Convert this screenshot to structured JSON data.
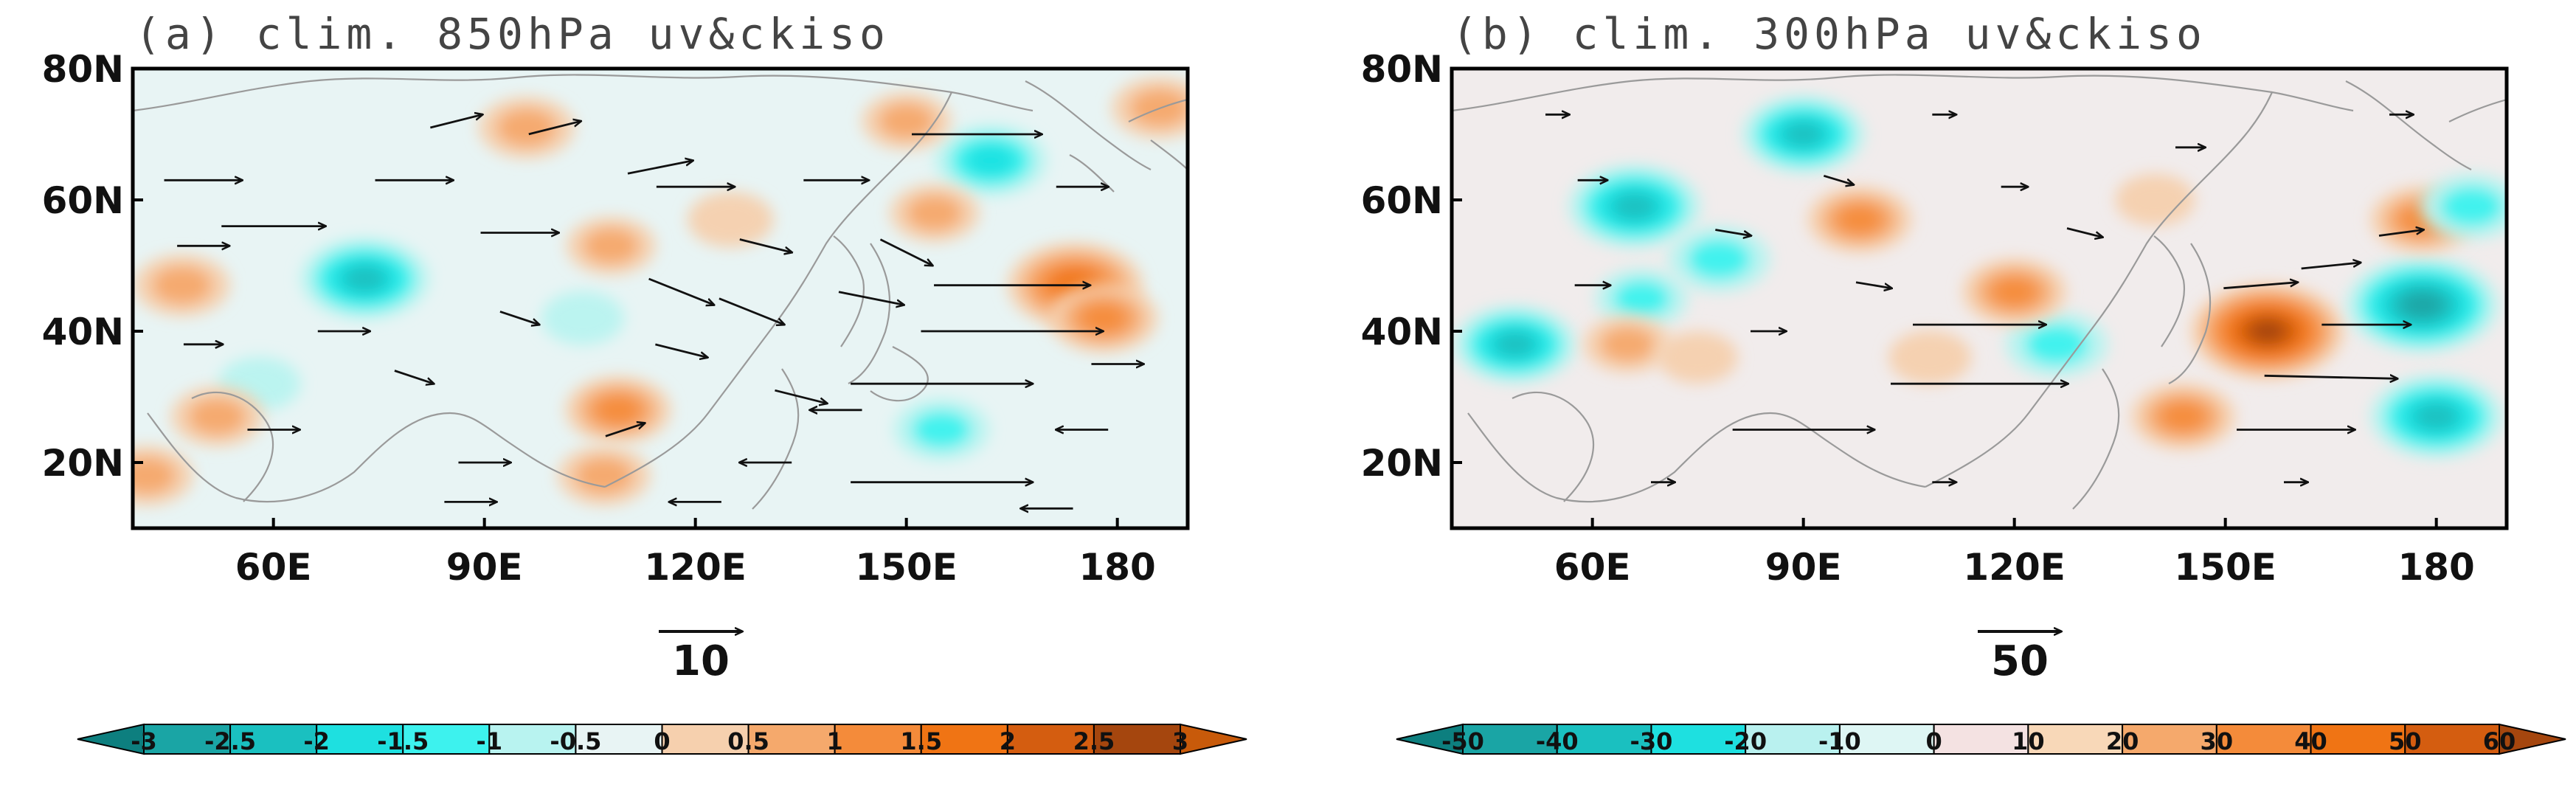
{
  "chart_data": [
    {
      "type": "heatmap",
      "panel": "a",
      "title": "(a) clim. 850hPa uv&ckiso",
      "x_ticks": [
        "60E",
        "90E",
        "120E",
        "150E",
        "180"
      ],
      "x_tick_values": [
        60,
        90,
        120,
        150,
        180
      ],
      "y_ticks": [
        "20N",
        "40N",
        "60N",
        "80N"
      ],
      "y_tick_values": [
        20,
        40,
        60,
        80
      ],
      "xlim": [
        40,
        190
      ],
      "ylim": [
        10,
        80
      ],
      "reference_vector": {
        "label": "10",
        "magnitude": 10
      },
      "colorbar": {
        "ticks": [
          "-3",
          "-2.5",
          "-2",
          "-1.5",
          "-1",
          "-0.5",
          "0",
          "0.5",
          "1",
          "1.5",
          "2",
          "2.5",
          "3"
        ],
        "colors": [
          "#0d7f7f",
          "#1aa5a5",
          "#1ac0c0",
          "#1ee0e0",
          "#3df2ee",
          "#b8f3f0",
          "#e8f4f4",
          "#f6d0ae",
          "#f5a96c",
          "#f48b3a",
          "#f07414",
          "#d45d10",
          "#a5460e",
          "#c85a0a"
        ]
      },
      "anomalies": [
        {
          "lon": 73,
          "lat": 48,
          "value": -2.0
        },
        {
          "lon": 162,
          "lat": 66,
          "value": -1.5
        },
        {
          "lon": 104,
          "lat": 42,
          "value": -0.6
        },
        {
          "lon": 155,
          "lat": 25,
          "value": -1.0
        },
        {
          "lon": 58,
          "lat": 32,
          "value": -0.6
        },
        {
          "lon": 174,
          "lat": 47,
          "value": 2.2
        },
        {
          "lon": 178,
          "lat": 42,
          "value": 1.4
        },
        {
          "lon": 96,
          "lat": 71,
          "value": 1.0
        },
        {
          "lon": 150,
          "lat": 72,
          "value": 0.8
        },
        {
          "lon": 186,
          "lat": 74,
          "value": 1.0
        },
        {
          "lon": 47,
          "lat": 47,
          "value": 1.0
        },
        {
          "lon": 52,
          "lat": 27,
          "value": 0.9
        },
        {
          "lon": 109,
          "lat": 28,
          "value": 1.3
        },
        {
          "lon": 108,
          "lat": 53,
          "value": 0.8
        },
        {
          "lon": 125,
          "lat": 57,
          "value": 0.7
        },
        {
          "lon": 154,
          "lat": 58,
          "value": 0.8
        },
        {
          "lon": 107,
          "lat": 18,
          "value": 0.9
        },
        {
          "lon": 42,
          "lat": 18,
          "value": 0.9
        }
      ],
      "vectors": [
        {
          "lon": 86,
          "lat": 72,
          "u": 4,
          "v": 1
        },
        {
          "lon": 100,
          "lat": 71,
          "u": 4,
          "v": 1
        },
        {
          "lon": 160,
          "lat": 70,
          "u": 10,
          "v": 0
        },
        {
          "lon": 50,
          "lat": 63,
          "u": 6,
          "v": 0
        },
        {
          "lon": 80,
          "lat": 63,
          "u": 6,
          "v": 0
        },
        {
          "lon": 120,
          "lat": 62,
          "u": 6,
          "v": 0
        },
        {
          "lon": 60,
          "lat": 56,
          "u": 8,
          "v": 0
        },
        {
          "lon": 95,
          "lat": 55,
          "u": 6,
          "v": 0
        },
        {
          "lon": 130,
          "lat": 53,
          "u": 4,
          "v": -1
        },
        {
          "lon": 150,
          "lat": 52,
          "u": 4,
          "v": -2
        },
        {
          "lon": 118,
          "lat": 46,
          "u": 5,
          "v": -2
        },
        {
          "lon": 128,
          "lat": 43,
          "u": 5,
          "v": -2
        },
        {
          "lon": 145,
          "lat": 45,
          "u": 5,
          "v": -1
        },
        {
          "lon": 165,
          "lat": 47,
          "u": 12,
          "v": 0
        },
        {
          "lon": 165,
          "lat": 40,
          "u": 14,
          "v": 0
        },
        {
          "lon": 155,
          "lat": 32,
          "u": 14,
          "v": 0
        },
        {
          "lon": 155,
          "lat": 17,
          "u": 14,
          "v": 0
        },
        {
          "lon": 118,
          "lat": 37,
          "u": 4,
          "v": -1
        },
        {
          "lon": 70,
          "lat": 40,
          "u": 4,
          "v": 0
        },
        {
          "lon": 60,
          "lat": 25,
          "u": 4,
          "v": 0
        },
        {
          "lon": 90,
          "lat": 20,
          "u": 4,
          "v": 0
        },
        {
          "lon": 110,
          "lat": 25,
          "u": 3,
          "v": 1
        },
        {
          "lon": 130,
          "lat": 20,
          "u": -4,
          "v": 0
        },
        {
          "lon": 140,
          "lat": 28,
          "u": -4,
          "v": 0
        },
        {
          "lon": 175,
          "lat": 25,
          "u": -4,
          "v": 0
        },
        {
          "lon": 80,
          "lat": 33,
          "u": 3,
          "v": -1
        },
        {
          "lon": 50,
          "lat": 53,
          "u": 4,
          "v": 0
        },
        {
          "lon": 115,
          "lat": 65,
          "u": 5,
          "v": 1
        },
        {
          "lon": 140,
          "lat": 63,
          "u": 5,
          "v": 0
        },
        {
          "lon": 175,
          "lat": 62,
          "u": 4,
          "v": 0
        },
        {
          "lon": 180,
          "lat": 35,
          "u": 4,
          "v": 0
        },
        {
          "lon": 95,
          "lat": 42,
          "u": 3,
          "v": -1
        },
        {
          "lon": 50,
          "lat": 38,
          "u": 3,
          "v": 0
        },
        {
          "lon": 135,
          "lat": 30,
          "u": 4,
          "v": -1
        },
        {
          "lon": 88,
          "lat": 14,
          "u": 4,
          "v": 0
        },
        {
          "lon": 120,
          "lat": 14,
          "u": -4,
          "v": 0
        },
        {
          "lon": 170,
          "lat": 13,
          "u": -4,
          "v": 0
        }
      ]
    },
    {
      "type": "heatmap",
      "panel": "b",
      "title": "(b) clim. 300hPa uv&ckiso",
      "x_ticks": [
        "60E",
        "90E",
        "120E",
        "150E",
        "180"
      ],
      "x_tick_values": [
        60,
        90,
        120,
        150,
        180
      ],
      "y_ticks": [
        "20N",
        "40N",
        "60N",
        "80N"
      ],
      "y_tick_values": [
        20,
        40,
        60,
        80
      ],
      "xlim": [
        40,
        190
      ],
      "ylim": [
        10,
        80
      ],
      "reference_vector": {
        "label": "50",
        "magnitude": 50
      },
      "colorbar": {
        "ticks": [
          "-50",
          "-40",
          "-30",
          "-20",
          "-10",
          "0",
          "10",
          "20",
          "30",
          "40",
          "50",
          "60"
        ],
        "colors": [
          "#0d7f7f",
          "#1aa5a5",
          "#1ac0c0",
          "#1ee0e0",
          "#b9f1ef",
          "#def6f4",
          "#f4e2e2",
          "#f8d8b8",
          "#f5a96c",
          "#f48b3a",
          "#f07414",
          "#d45d10",
          "#a5460e"
        ]
      },
      "anomalies": [
        {
          "lon": 156,
          "lat": 40,
          "value": 55
        },
        {
          "lon": 178,
          "lat": 44,
          "value": -45
        },
        {
          "lon": 180,
          "lat": 27,
          "value": -35
        },
        {
          "lon": 66,
          "lat": 59,
          "value": -35
        },
        {
          "lon": 90,
          "lat": 70,
          "value": -30
        },
        {
          "lon": 49,
          "lat": 38,
          "value": -30
        },
        {
          "lon": 126,
          "lat": 38,
          "value": -20
        },
        {
          "lon": 98,
          "lat": 57,
          "value": 25
        },
        {
          "lon": 120,
          "lat": 46,
          "value": 25
        },
        {
          "lon": 144,
          "lat": 27,
          "value": 25
        },
        {
          "lon": 178,
          "lat": 57,
          "value": 25
        },
        {
          "lon": 185,
          "lat": 59,
          "value": -20
        },
        {
          "lon": 78,
          "lat": 51,
          "value": -20
        },
        {
          "lon": 67,
          "lat": 45,
          "value": -15
        },
        {
          "lon": 65,
          "lat": 38,
          "value": 15
        },
        {
          "lon": 75,
          "lat": 36,
          "value": 10
        },
        {
          "lon": 108,
          "lat": 36,
          "value": 12
        },
        {
          "lon": 140,
          "lat": 60,
          "value": 10
        }
      ],
      "vectors": [
        {
          "lon": 115,
          "lat": 41,
          "u": 45,
          "v": 0
        },
        {
          "lon": 115,
          "lat": 32,
          "u": 60,
          "v": 0
        },
        {
          "lon": 90,
          "lat": 25,
          "u": 48,
          "v": 0
        },
        {
          "lon": 160,
          "lat": 25,
          "u": 40,
          "v": 0
        },
        {
          "lon": 165,
          "lat": 33,
          "u": 45,
          "v": -1
        },
        {
          "lon": 170,
          "lat": 41,
          "u": 30,
          "v": 0
        },
        {
          "lon": 155,
          "lat": 47,
          "u": 25,
          "v": 2
        },
        {
          "lon": 165,
          "lat": 50,
          "u": 20,
          "v": 2
        },
        {
          "lon": 175,
          "lat": 55,
          "u": 15,
          "v": 2
        },
        {
          "lon": 60,
          "lat": 63,
          "u": 10,
          "v": 0
        },
        {
          "lon": 95,
          "lat": 63,
          "u": 10,
          "v": -3
        },
        {
          "lon": 80,
          "lat": 55,
          "u": 12,
          "v": -2
        },
        {
          "lon": 60,
          "lat": 47,
          "u": 12,
          "v": 0
        },
        {
          "lon": 100,
          "lat": 47,
          "u": 12,
          "v": -2
        },
        {
          "lon": 130,
          "lat": 55,
          "u": 12,
          "v": -3
        },
        {
          "lon": 145,
          "lat": 68,
          "u": 10,
          "v": 0
        },
        {
          "lon": 70,
          "lat": 17,
          "u": 8,
          "v": 0
        },
        {
          "lon": 110,
          "lat": 17,
          "u": 8,
          "v": 0
        },
        {
          "lon": 160,
          "lat": 17,
          "u": 8,
          "v": 0
        },
        {
          "lon": 55,
          "lat": 73,
          "u": 8,
          "v": 0
        },
        {
          "lon": 110,
          "lat": 73,
          "u": 8,
          "v": 0
        },
        {
          "lon": 175,
          "lat": 73,
          "u": 8,
          "v": 0
        },
        {
          "lon": 120,
          "lat": 62,
          "u": 9,
          "v": 0
        },
        {
          "lon": 85,
          "lat": 40,
          "u": 12,
          "v": 0
        }
      ]
    }
  ]
}
